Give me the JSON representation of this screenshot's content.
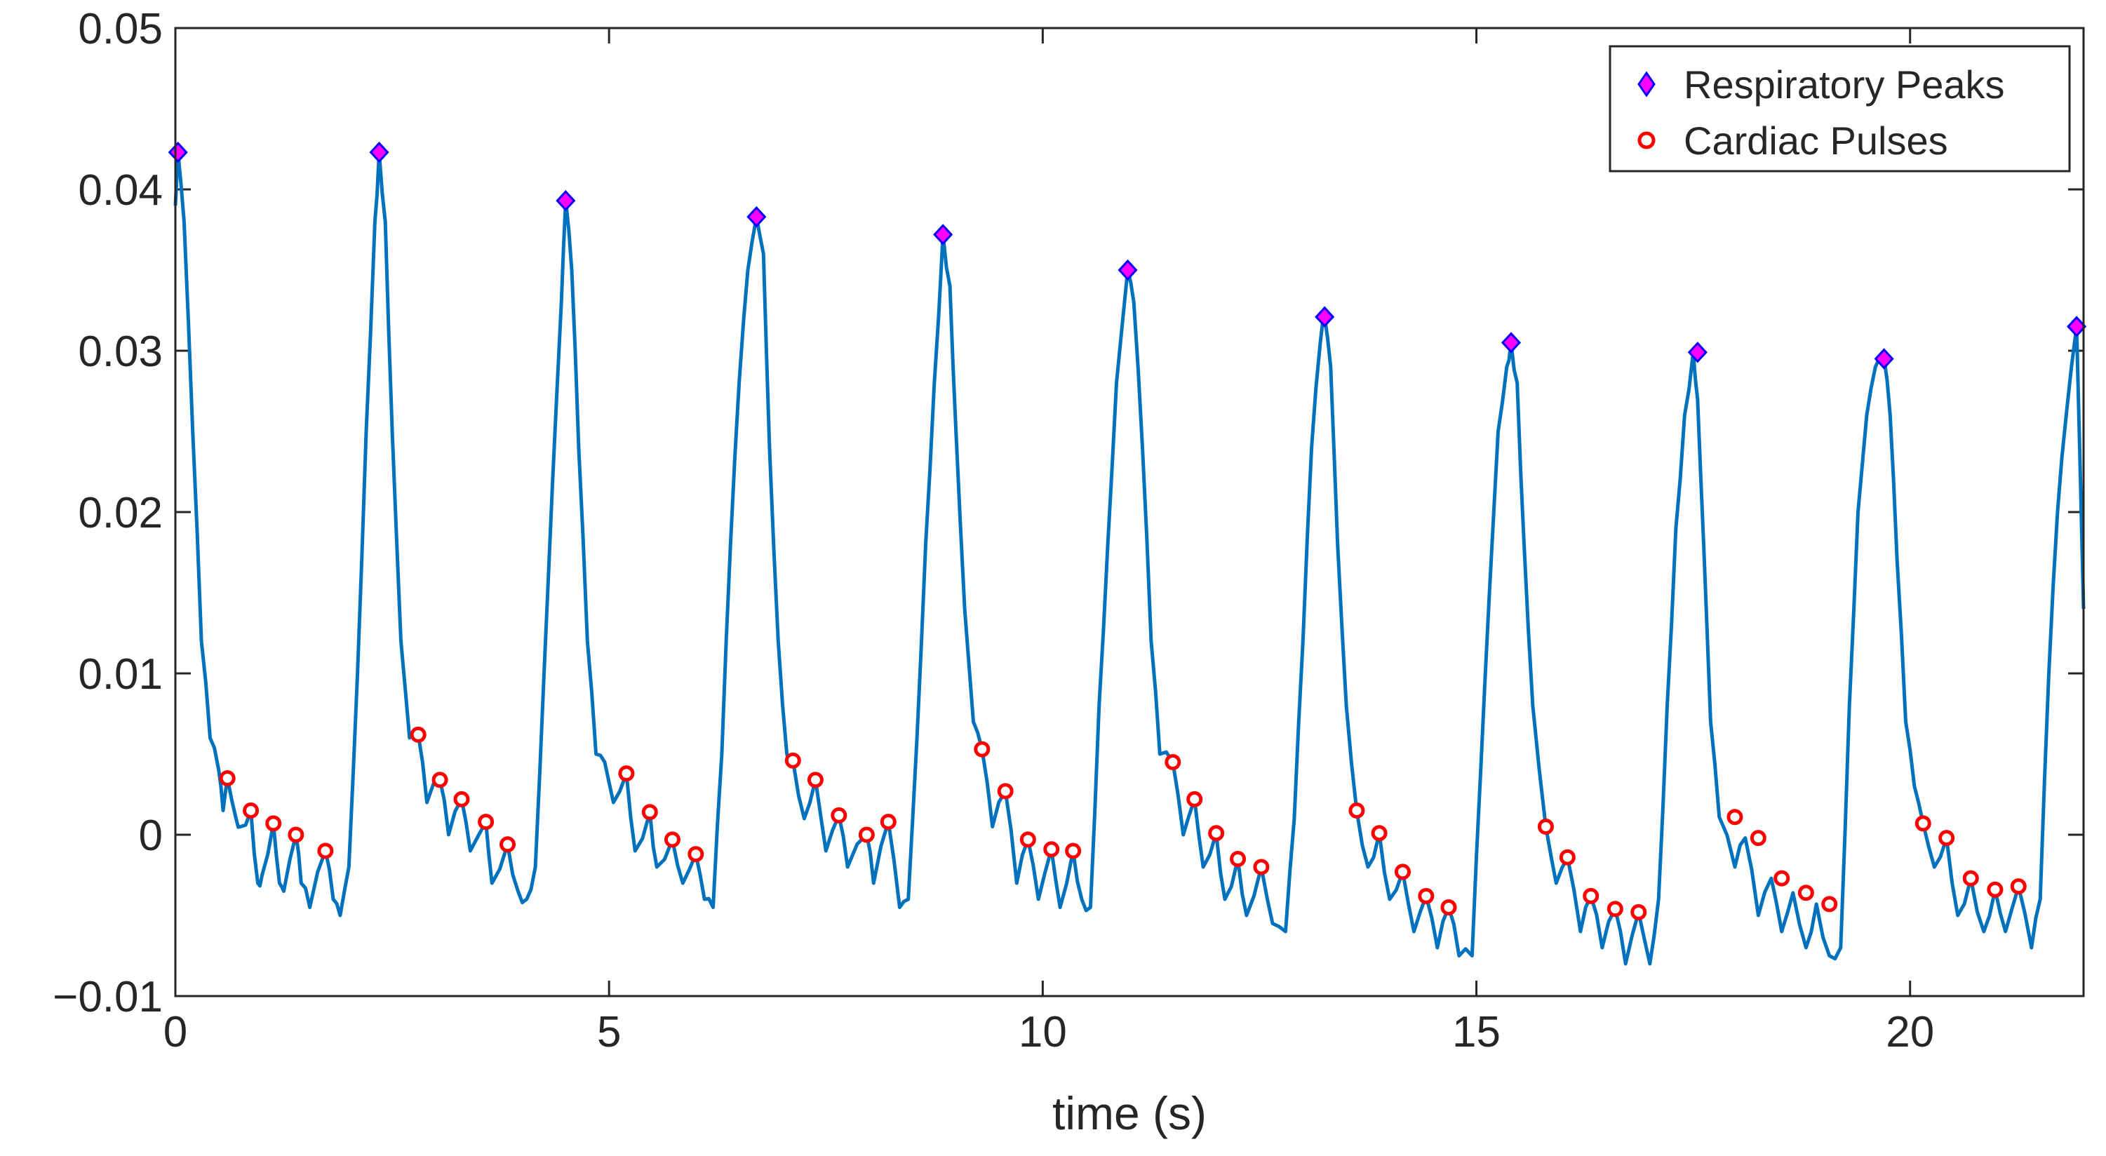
{
  "colors": {
    "signal": "#0072BD",
    "respiratory_fill": "#FF00FF",
    "respiratory_edge": "#0000FF",
    "cardiac_edge": "#FF0000",
    "axis": "#262626",
    "background": "#FFFFFF"
  },
  "chart_data": {
    "type": "line",
    "title": "",
    "xlabel": "time (s)",
    "ylabel": "",
    "xlim": [
      0,
      22
    ],
    "ylim": [
      -0.01,
      0.05
    ],
    "x_ticks": [
      0,
      5,
      10,
      15,
      20
    ],
    "x_tick_labels": [
      "0",
      "5",
      "10",
      "15",
      "20"
    ],
    "y_ticks": [
      -0.01,
      0,
      0.01,
      0.02,
      0.03,
      0.04,
      0.05
    ],
    "y_tick_labels": [
      "−0.01",
      "0",
      "0.01",
      "0.02",
      "0.03",
      "0.04",
      "0.05"
    ],
    "grid": false,
    "legend_position": "top-right",
    "legend": [
      {
        "name": "Respiratory Peaks",
        "marker": "diamond"
      },
      {
        "name": "Cardiac Pulses",
        "marker": "circle"
      }
    ],
    "series": [
      {
        "name": "Respiratory Peaks",
        "type": "scatter",
        "marker": "diamond",
        "x": [
          0.03,
          2.35,
          4.5,
          6.7,
          8.85,
          10.98,
          13.25,
          15.4,
          17.55,
          19.7,
          21.92
        ],
        "y": [
          0.0423,
          0.0423,
          0.0393,
          0.0383,
          0.0372,
          0.035,
          0.0321,
          0.0305,
          0.0299,
          0.0295,
          0.0315
        ]
      },
      {
        "name": "Cardiac Pulses",
        "type": "scatter",
        "marker": "circle",
        "x": [
          0.6,
          0.87,
          1.13,
          1.39,
          1.73,
          2.8,
          3.05,
          3.3,
          3.58,
          3.83,
          5.2,
          5.47,
          5.73,
          6.0,
          7.12,
          7.38,
          7.65,
          7.97,
          8.22,
          9.3,
          9.57,
          9.83,
          10.1,
          10.35,
          11.5,
          11.75,
          12.0,
          12.25,
          12.52,
          13.62,
          13.88,
          14.15,
          14.42,
          14.68,
          15.8,
          16.05,
          16.32,
          16.6,
          16.87,
          17.98,
          18.25,
          18.52,
          18.8,
          19.07,
          20.15,
          20.42,
          20.7,
          20.98,
          21.25
        ],
        "y": [
          0.0035,
          0.0015,
          0.0007,
          0.0,
          -0.001,
          0.0062,
          0.0034,
          0.0022,
          0.0008,
          -0.0006,
          0.0038,
          0.0014,
          -0.0003,
          -0.0012,
          0.0046,
          0.0034,
          0.0012,
          0.0,
          0.0008,
          0.0053,
          0.0027,
          -0.0003,
          -0.0009,
          -0.001,
          0.0045,
          0.0022,
          0.0001,
          -0.0015,
          -0.002,
          0.0015,
          0.0001,
          -0.0023,
          -0.0038,
          -0.0045,
          0.0005,
          -0.0014,
          -0.0038,
          -0.0046,
          -0.0048,
          0.0011,
          -0.0002,
          -0.0027,
          -0.0036,
          -0.0043,
          0.0007,
          -0.0002,
          -0.0027,
          -0.0034,
          -0.0032
        ]
      },
      {
        "name": "Respiratory signal",
        "type": "line",
        "x": [
          0,
          0.03,
          0.1,
          0.2,
          0.3,
          0.4,
          0.5,
          0.55,
          0.6,
          0.7,
          0.75,
          0.87,
          0.95,
          1.0,
          1.13,
          1.2,
          1.25,
          1.39,
          1.45,
          1.55,
          1.73,
          1.82,
          1.9,
          2.0,
          2.1,
          2.2,
          2.3,
          2.35,
          2.42,
          2.5,
          2.6,
          2.7,
          2.8,
          2.9,
          3.05,
          3.15,
          3.3,
          3.4,
          3.58,
          3.65,
          3.83,
          3.95,
          4.05,
          4.15,
          4.25,
          4.35,
          4.45,
          4.5,
          4.57,
          4.65,
          4.75,
          4.85,
          4.95,
          5.05,
          5.2,
          5.3,
          5.47,
          5.55,
          5.73,
          5.85,
          6.0,
          6.1,
          6.2,
          6.3,
          6.4,
          6.5,
          6.6,
          6.7,
          6.78,
          6.85,
          6.95,
          7.05,
          7.12,
          7.25,
          7.38,
          7.5,
          7.65,
          7.75,
          7.97,
          8.05,
          8.22,
          8.35,
          8.45,
          8.55,
          8.65,
          8.75,
          8.85,
          8.93,
          9.0,
          9.1,
          9.2,
          9.3,
          9.42,
          9.57,
          9.7,
          9.83,
          9.95,
          10.1,
          10.2,
          10.35,
          10.45,
          10.55,
          10.65,
          10.75,
          10.85,
          10.98,
          11.05,
          11.15,
          11.25,
          11.35,
          11.5,
          11.62,
          11.75,
          11.85,
          12.0,
          12.1,
          12.25,
          12.35,
          12.52,
          12.65,
          12.8,
          12.9,
          13.0,
          13.1,
          13.2,
          13.25,
          13.32,
          13.4,
          13.5,
          13.62,
          13.75,
          13.88,
          14.0,
          14.15,
          14.28,
          14.42,
          14.55,
          14.68,
          14.8,
          14.95,
          15.05,
          15.15,
          15.25,
          15.35,
          15.4,
          15.47,
          15.55,
          15.65,
          15.8,
          15.92,
          16.05,
          16.2,
          16.32,
          16.45,
          16.6,
          16.72,
          16.87,
          17.0,
          17.1,
          17.2,
          17.3,
          17.4,
          17.5,
          17.55,
          17.62,
          17.7,
          17.8,
          17.98,
          18.1,
          18.25,
          18.4,
          18.52,
          18.65,
          18.8,
          18.92,
          19.07,
          19.2,
          19.3,
          19.4,
          19.5,
          19.6,
          19.7,
          19.77,
          19.85,
          19.95,
          20.05,
          20.15,
          20.28,
          20.42,
          20.55,
          20.7,
          20.85,
          20.98,
          21.1,
          21.25,
          21.4,
          21.5,
          21.6,
          21.7,
          21.8,
          21.92,
          22.0
        ],
        "y": [
          0.039,
          0.0423,
          0.038,
          0.025,
          0.012,
          0.006,
          0.004,
          0.0015,
          0.0035,
          0.001,
          0.0005,
          0.0015,
          -0.003,
          -0.0025,
          0.0007,
          -0.003,
          -0.0035,
          0.0,
          -0.003,
          -0.0045,
          -0.001,
          -0.004,
          -0.005,
          -0.002,
          0.01,
          0.025,
          0.038,
          0.0423,
          0.038,
          0.025,
          0.012,
          0.006,
          0.0062,
          0.002,
          0.0034,
          0.0,
          0.0022,
          -0.001,
          0.0008,
          -0.003,
          -0.0006,
          -0.0035,
          -0.004,
          -0.002,
          0.01,
          0.022,
          0.033,
          0.0393,
          0.035,
          0.024,
          0.012,
          0.005,
          0.0045,
          0.002,
          0.0038,
          -0.001,
          0.0014,
          -0.002,
          -0.0003,
          -0.003,
          -0.0012,
          -0.004,
          -0.0045,
          0.005,
          0.018,
          0.028,
          0.035,
          0.0383,
          0.036,
          0.024,
          0.012,
          0.005,
          0.0046,
          0.001,
          0.0034,
          -0.001,
          0.0012,
          -0.002,
          0.0,
          -0.003,
          0.0008,
          -0.0045,
          -0.004,
          0.006,
          0.018,
          0.028,
          0.0372,
          0.034,
          0.025,
          0.014,
          0.007,
          0.0053,
          0.0005,
          0.0027,
          -0.003,
          -0.0003,
          -0.004,
          -0.0009,
          -0.0045,
          -0.001,
          -0.004,
          -0.0045,
          0.008,
          0.018,
          0.028,
          0.035,
          0.033,
          0.024,
          0.012,
          0.005,
          0.0045,
          0.0,
          0.0022,
          -0.002,
          0.0001,
          -0.004,
          -0.0015,
          -0.005,
          -0.002,
          -0.0055,
          -0.006,
          0.001,
          0.012,
          0.024,
          0.0305,
          0.0321,
          0.029,
          0.018,
          0.008,
          0.0015,
          -0.002,
          0.0001,
          -0.004,
          -0.0023,
          -0.006,
          -0.0038,
          -0.007,
          -0.0045,
          -0.0075,
          -0.0075,
          0.004,
          0.015,
          0.025,
          0.029,
          0.0305,
          0.028,
          0.018,
          0.008,
          0.0005,
          -0.003,
          -0.0014,
          -0.006,
          -0.0038,
          -0.007,
          -0.0046,
          -0.008,
          -0.0048,
          -0.008,
          -0.004,
          0.008,
          0.019,
          0.026,
          0.0299,
          0.027,
          0.018,
          0.007,
          0.0011,
          -0.002,
          -0.0002,
          -0.005,
          -0.0027,
          -0.006,
          -0.0036,
          -0.007,
          -0.0043,
          -0.0075,
          -0.007,
          0.008,
          0.02,
          0.026,
          0.029,
          0.0295,
          0.026,
          0.017,
          0.007,
          0.003,
          0.0007,
          -0.002,
          -0.0002,
          -0.005,
          -0.0027,
          -0.006,
          -0.0034,
          -0.006,
          -0.0032,
          -0.007,
          -0.004,
          0.01,
          0.02,
          0.026,
          0.0315,
          0.014
        ]
      }
    ]
  }
}
